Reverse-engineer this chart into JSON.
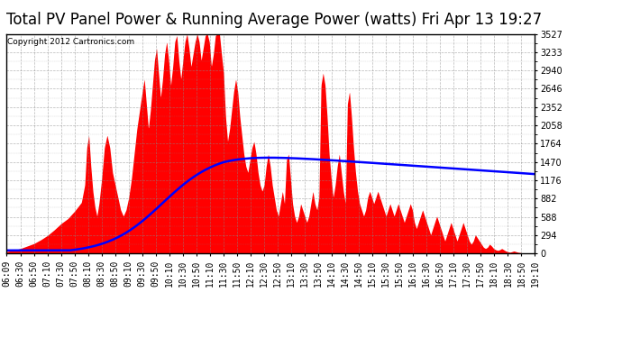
{
  "title": "Total PV Panel Power & Running Average Power (watts) Fri Apr 13 19:27",
  "copyright": "Copyright 2012 Cartronics.com",
  "background_color": "#ffffff",
  "plot_bg_color": "#ffffff",
  "ylim": [
    0.0,
    3527.4
  ],
  "yticks": [
    0.0,
    293.9,
    587.9,
    881.8,
    1175.8,
    1469.7,
    1763.7,
    2057.6,
    2351.6,
    2645.5,
    2939.5,
    3233.4,
    3527.4
  ],
  "fill_color": "#ff0000",
  "line_color": "#0000ff",
  "grid_color": "#888888",
  "title_fontsize": 12,
  "tick_label_fontsize": 7,
  "x_start_min": 369,
  "x_end_min": 1150
}
